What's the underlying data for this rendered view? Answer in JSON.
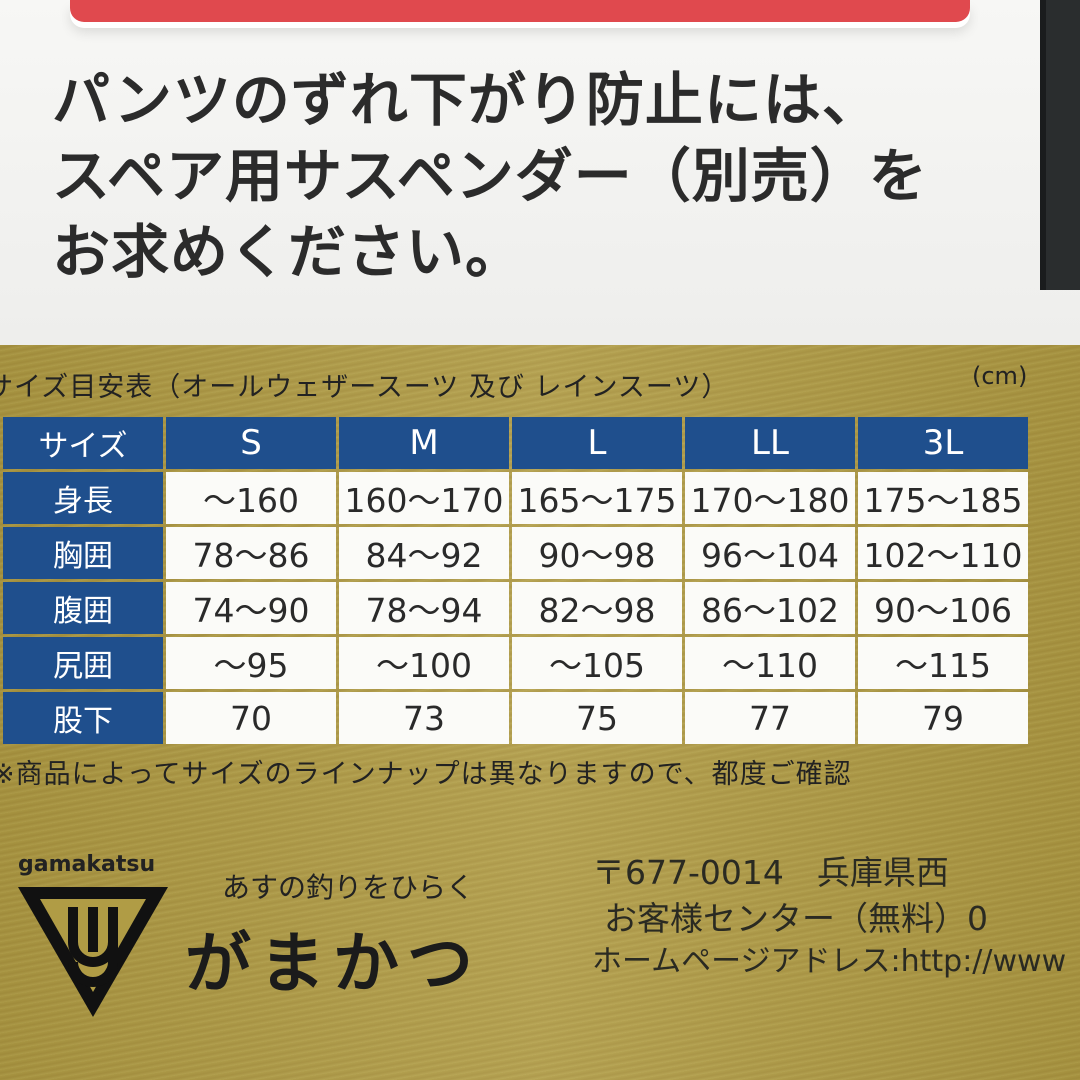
{
  "notice": {
    "lines": [
      "パンツのずれ下がり防止には、",
      "スペア用サスペンダー（別売）を",
      "お求めください。"
    ]
  },
  "size_chart": {
    "title": "サイズ目安表（オールウェザースーツ 及び レインスーツ）",
    "unit": "(cm)",
    "header_label": "サイズ",
    "columns": [
      "S",
      "M",
      "L",
      "LL",
      "3L"
    ],
    "rows": [
      {
        "label": "身長",
        "values": [
          "～160",
          "160～170",
          "165～175",
          "170～180",
          "175～185"
        ]
      },
      {
        "label": "胸囲",
        "values": [
          "78～86",
          "84～92",
          "90～98",
          "96～104",
          "102～110"
        ]
      },
      {
        "label": "腹囲",
        "values": [
          "74～90",
          "78～94",
          "82～98",
          "86～102",
          "90～106"
        ]
      },
      {
        "label": "尻囲",
        "values": [
          "～95",
          "～100",
          "～105",
          "～110",
          "～115"
        ]
      },
      {
        "label": "股下",
        "values": [
          "70",
          "73",
          "75",
          "77",
          "79"
        ]
      }
    ],
    "note": "※商品によってサイズのラインナップは異なりますので、都度ご確認"
  },
  "footer": {
    "brand_small": "gamakatsu",
    "slogan": "あすの釣りをひらく",
    "brand_name": "がまかつ",
    "address": "〒677-0014　兵庫県西",
    "customer_center": "お客様センター（無料）0",
    "homepage": "ホームページアドレス:http://www"
  },
  "colors": {
    "table_header": "#1f4f8d",
    "background_gold": "#ad9844",
    "accent_red": "#e0494e"
  }
}
